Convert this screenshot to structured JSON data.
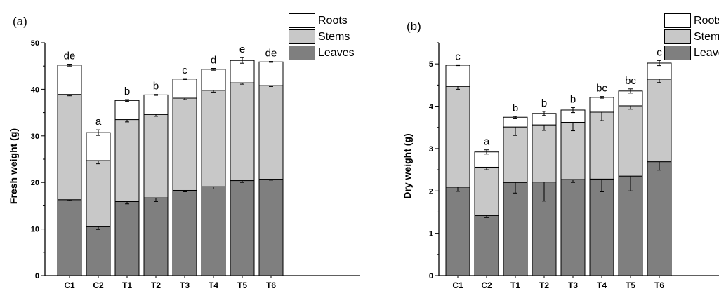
{
  "chart_data": [
    {
      "type": "bar",
      "stacked": true,
      "panel_label": "(a)",
      "ylabel": "Fresh weight (g)",
      "ylim": [
        0,
        50
      ],
      "yticks": [
        "0",
        "10",
        "20",
        "30",
        "40",
        "50"
      ],
      "categories": [
        "C1",
        "C2",
        "T1",
        "T2",
        "T3",
        "T4",
        "T5",
        "T6"
      ],
      "series": [
        {
          "name": "Leaves",
          "color": "#7f7f7f",
          "values": [
            16.3,
            10.5,
            15.9,
            16.7,
            18.3,
            19.1,
            20.4,
            20.7
          ],
          "errors": [
            0.2,
            0.6,
            0.5,
            0.8,
            0.3,
            0.5,
            0.4,
            0.2
          ]
        },
        {
          "name": "Stems",
          "color": "#c8c8c8",
          "values": [
            22.6,
            14.2,
            17.6,
            17.9,
            19.8,
            20.7,
            21.0,
            20.1
          ],
          "errors": [
            0.3,
            0.7,
            0.5,
            0.4,
            0.3,
            0.4,
            0.3,
            0.2
          ]
        },
        {
          "name": "Roots",
          "color": "#ffffff",
          "values": [
            6.3,
            6.0,
            4.1,
            4.2,
            4.1,
            4.5,
            4.8,
            5.1
          ],
          "errors": [
            0.2,
            0.6,
            0.2,
            0.1,
            0.1,
            0.2,
            0.6,
            0.1
          ]
        }
      ],
      "significance": [
        "de",
        "a",
        "b",
        "b",
        "c",
        "d",
        "e",
        "de"
      ],
      "legend_position": "top-right"
    },
    {
      "type": "bar",
      "stacked": true,
      "panel_label": "(b)",
      "ylabel": "Dry weight (g)",
      "ylim": [
        0,
        5.5
      ],
      "yticks": [
        "0",
        "1",
        "2",
        "3",
        "4",
        "5"
      ],
      "categories": [
        "C1",
        "C2",
        "T1",
        "T2",
        "T3",
        "T4",
        "T5",
        "T6"
      ],
      "series": [
        {
          "name": "Leaves",
          "color": "#7f7f7f",
          "values": [
            2.09,
            1.42,
            2.2,
            2.21,
            2.27,
            2.28,
            2.35,
            2.69
          ],
          "errors": [
            0.1,
            0.05,
            0.25,
            0.45,
            0.07,
            0.3,
            0.35,
            0.2
          ]
        },
        {
          "name": "Stems",
          "color": "#c8c8c8",
          "values": [
            2.38,
            1.14,
            1.31,
            1.35,
            1.35,
            1.58,
            1.66,
            1.95
          ],
          "errors": [
            0.07,
            0.06,
            0.2,
            0.13,
            0.2,
            0.2,
            0.08,
            0.08
          ]
        },
        {
          "name": "Roots",
          "color": "#ffffff",
          "values": [
            0.5,
            0.36,
            0.23,
            0.27,
            0.29,
            0.35,
            0.35,
            0.38
          ],
          "errors": [
            0.01,
            0.05,
            0.02,
            0.05,
            0.06,
            0.02,
            0.05,
            0.06
          ]
        }
      ],
      "significance": [
        "c",
        "a",
        "b",
        "b",
        "b",
        "bc",
        "bc",
        "c"
      ],
      "legend_position": "top-right"
    }
  ]
}
